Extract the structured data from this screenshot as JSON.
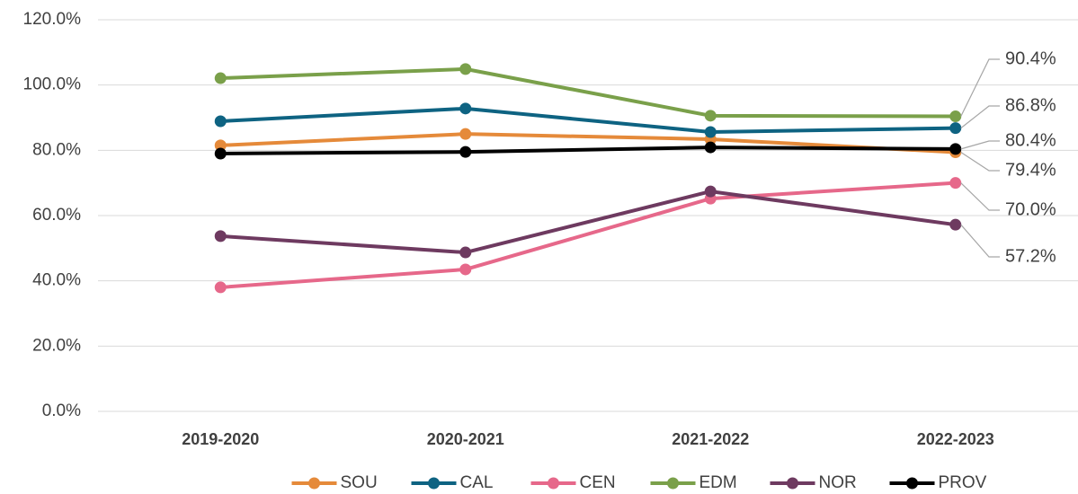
{
  "chart_data": {
    "type": "line",
    "categories": [
      "2019-2020",
      "2020-2021",
      "2021-2022",
      "2022-2023"
    ],
    "series": [
      {
        "name": "SOU",
        "color": "#e58a3a",
        "values": [
          81.5,
          85.0,
          83.4,
          79.4
        ],
        "value_labels": [
          null,
          null,
          null,
          "79.4%"
        ]
      },
      {
        "name": "CAL",
        "color": "#0e6382",
        "values": [
          88.9,
          92.8,
          85.6,
          86.8
        ],
        "value_labels": [
          null,
          null,
          null,
          "86.8%"
        ]
      },
      {
        "name": "CEN",
        "color": "#e6688a",
        "values": [
          38.0,
          43.5,
          65.2,
          70.0
        ],
        "value_labels": [
          null,
          null,
          null,
          "70.0%"
        ]
      },
      {
        "name": "EDM",
        "color": "#7aa04a",
        "values": [
          102.1,
          104.9,
          90.6,
          90.4
        ],
        "value_labels": [
          null,
          null,
          null,
          "90.4%"
        ]
      },
      {
        "name": "NOR",
        "color": "#6e3a60",
        "values": [
          53.7,
          48.7,
          67.4,
          57.2
        ],
        "value_labels": [
          null,
          null,
          null,
          "57.2%"
        ]
      },
      {
        "name": "PROV",
        "color": "#000000",
        "values": [
          79.0,
          79.5,
          80.9,
          80.4
        ],
        "value_labels": [
          null,
          null,
          null,
          "80.4%"
        ]
      }
    ],
    "ylim": [
      0,
      120
    ],
    "yticks": [
      {
        "value": 0,
        "label": "0.0%"
      },
      {
        "value": 20,
        "label": "20.0%"
      },
      {
        "value": 40,
        "label": "40.0%"
      },
      {
        "value": 60,
        "label": "60.0%"
      },
      {
        "value": 80,
        "label": "80.0%"
      },
      {
        "value": 100,
        "label": "100.0%"
      },
      {
        "value": 120,
        "label": "120.0%"
      }
    ],
    "grid": true,
    "legend": "bottom"
  }
}
